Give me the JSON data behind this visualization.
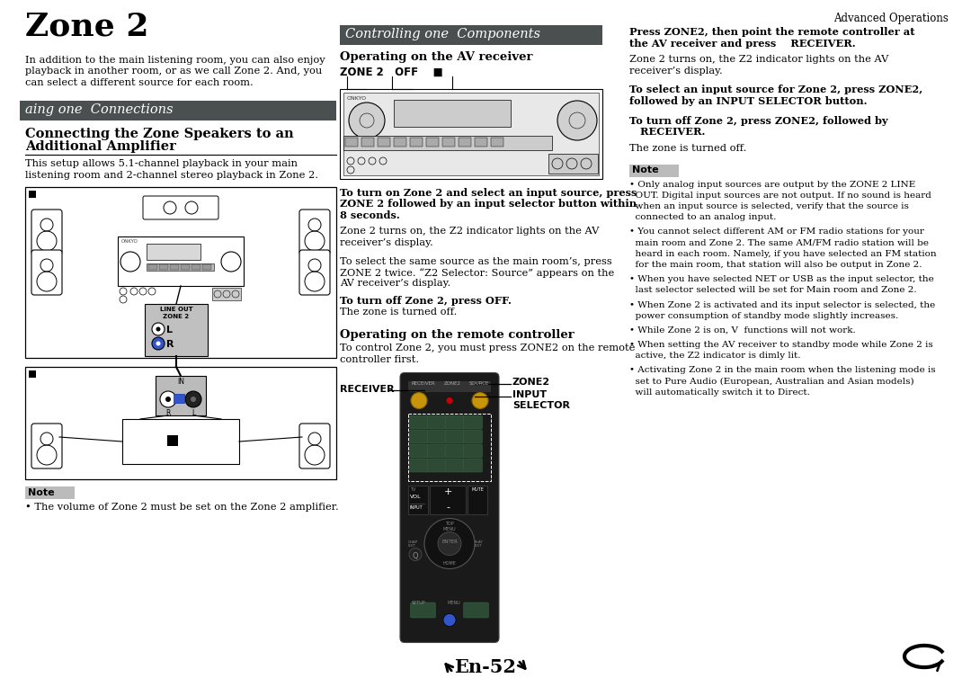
{
  "page_bg": "#ffffff",
  "header_text": "Advanced Operations",
  "title": "Zone 2",
  "section_bar_color": "#4a5050",
  "note_bg": "#bbbbbb",
  "col1_bar_text": "aing one  Connections",
  "col2_bar_text": "Controlling one  Components",
  "col1_intro_lines": [
    "In addition to the main listening room, you can also enjoy",
    "playback in another room, or as we call Zone 2. And, you",
    "can select a different source for each room."
  ],
  "col1_subheading_lines": [
    "Connecting the Zone Speakers to an",
    "Additional Amplifier"
  ],
  "col1_body_lines": [
    "This setup allows 5.1-channel playback in your main",
    "listening room and 2-channel stereo playback in Zone 2."
  ],
  "col1_note_text": "• The volume of Zone 2 must be set on the Zone 2 amplifier.",
  "col2_subheading1": "Operating on the AV receiver",
  "col2_zone_label": "ZONE 2   OFF    ■",
  "col2_bold1_lines": [
    "To turn on Zone 2 and select an input source, press",
    "ZONE 2 followed by an input selector button within",
    "8 seconds."
  ],
  "col2_body2_lines": [
    "Zone 2 turns on, the Z2 indicator lights on the AV",
    "receiver’s display."
  ],
  "col2_body3_lines": [
    "To select the same source as the main room’s, press",
    "ZONE 2 twice. “Z2 Selector: Source” appears on the",
    "AV receiver’s display."
  ],
  "col2_turnoff_bold": "To turn off Zone 2, press OFF.",
  "col2_turnoff_body": "The zone is turned off.",
  "col2_subheading2": "Operating on the remote controller",
  "col2_body6_lines": [
    "To control Zone 2, you must press ZONE2 on the remote",
    "controller first."
  ],
  "col2_receiver_label": "RECEIVER",
  "col2_zone2_label": "ZONE2",
  "col2_input_label": "INPUT",
  "col2_selector_label": "SELECTOR",
  "col3_bold1_lines": [
    "Press ZONE2, then point the remote controller at",
    "the AV receiver and press    RECEIVER."
  ],
  "col3_body1_lines": [
    "Zone 2 turns on, the Z2 indicator lights on the AV",
    "receiver’s display."
  ],
  "col3_bold2_lines": [
    "To select an input source for Zone 2, press ZONE2,",
    "followed by an INPUT SELECTOR button."
  ],
  "col3_bold3_lines": [
    "To turn off Zone 2, press ZONE2, followed by",
    "   RECEIVER."
  ],
  "col3_body4": "The zone is turned off.",
  "col3_bullets": [
    "• Only analog input sources are output by the ZONE 2 LINE\n  OUT. Digital input sources are not output. If no sound is heard\n  when an input source is selected, verify that the source is\n  connected to an analog input.",
    "• You cannot select different AM or FM radio stations for your\n  main room and Zone 2. The same AM/FM radio station will be\n  heard in each room. Namely, if you have selected an FM station\n  for the main room, that station will also be output in Zone 2.",
    "• When you have selected NET or USB as the input selector, the\n  last selector selected will be set for Main room and Zone 2.",
    "• When Zone 2 is activated and its input selector is selected, the\n  power consumption of standby mode slightly increases.",
    "• While Zone 2 is on, V  functions will not work.",
    "• When setting the AV receiver to standby mode while Zone 2 is\n  active, the Z2 indicator is dimly lit.",
    "• Activating Zone 2 in the main room when the listening mode is\n  set to Pure Audio (European, Australian and Asian models)\n  will automatically switch it to Direct."
  ],
  "footer_text": "En-52",
  "remote_body_color": "#1a1a1a",
  "remote_btn_color": "#2d4a35",
  "remote_btn_edge": "#3a5a42",
  "remote_gold_color": "#c8940a",
  "remote_gray_color": "#555555"
}
